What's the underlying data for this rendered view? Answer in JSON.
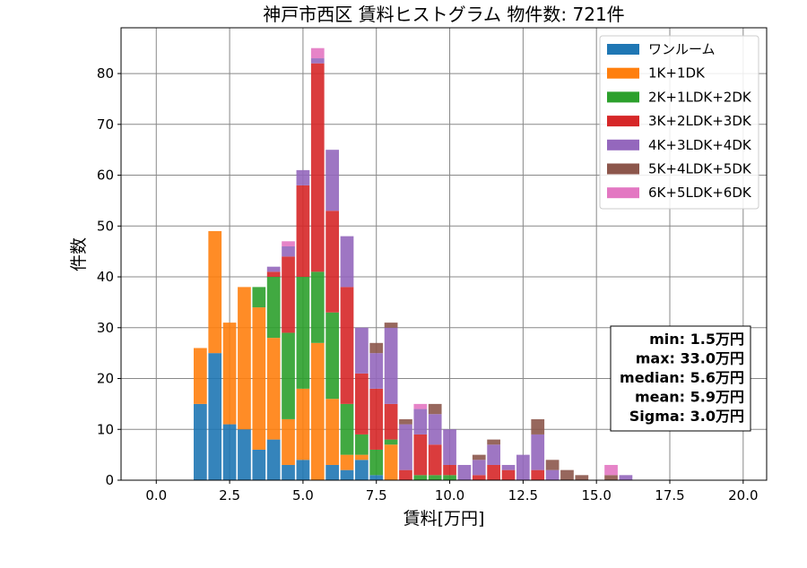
{
  "chart_data": {
    "type": "bar",
    "stacked": true,
    "title": "神戸市西区 賃料ヒストグラム 物件数: 721件",
    "xlabel": "賃料[万円]",
    "ylabel": "件数",
    "xlim": [
      -1.2,
      20.8
    ],
    "ylim": [
      0,
      89
    ],
    "xticks": [
      0.0,
      2.5,
      5.0,
      7.5,
      10.0,
      12.5,
      15.0,
      17.5,
      20.0
    ],
    "xtick_labels": [
      "0.0",
      "2.5",
      "5.0",
      "7.5",
      "10.0",
      "12.5",
      "15.0",
      "17.5",
      "20.0"
    ],
    "yticks": [
      0,
      10,
      20,
      30,
      40,
      50,
      60,
      70,
      80
    ],
    "ytick_labels": [
      "0",
      "10",
      "20",
      "30",
      "40",
      "50",
      "60",
      "70",
      "80"
    ],
    "grid": true,
    "legend_position": "top-right",
    "bin_width": 0.5,
    "bins": [
      1.5,
      2.0,
      2.5,
      3.0,
      3.5,
      4.0,
      4.5,
      5.0,
      5.5,
      6.0,
      6.5,
      7.0,
      7.5,
      8.0,
      8.5,
      9.0,
      9.5,
      10.0,
      10.5,
      11.0,
      11.5,
      12.0,
      12.5,
      13.0,
      13.5,
      14.0,
      14.5,
      15.0,
      15.5,
      16.0
    ],
    "series": [
      {
        "name": "ワンルーム",
        "color": "#1f77b4",
        "values": [
          15,
          25,
          11,
          10,
          6,
          8,
          3,
          4,
          0,
          3,
          2,
          4,
          1,
          0,
          0,
          0,
          0,
          0,
          0,
          0,
          0,
          0,
          0,
          0,
          0,
          0,
          0,
          0,
          0,
          0
        ]
      },
      {
        "name": "1K+1DK",
        "color": "#ff7f0e",
        "values": [
          11,
          24,
          20,
          28,
          28,
          20,
          9,
          14,
          27,
          13,
          3,
          1,
          0,
          7,
          0,
          0,
          0,
          0,
          0,
          0,
          0,
          0,
          0,
          0,
          0,
          0,
          0,
          0,
          0,
          0
        ]
      },
      {
        "name": "2K+1LDK+2DK",
        "color": "#2ca02c",
        "values": [
          0,
          0,
          0,
          0,
          4,
          12,
          17,
          22,
          14,
          17,
          10,
          4,
          5,
          1,
          0,
          1,
          1,
          1,
          0,
          0,
          0,
          0,
          0,
          0,
          0,
          0,
          0,
          0,
          0,
          0
        ]
      },
      {
        "name": "3K+2LDK+3DK",
        "color": "#d62728",
        "values": [
          0,
          0,
          0,
          0,
          0,
          1,
          15,
          18,
          41,
          20,
          23,
          12,
          12,
          7,
          2,
          8,
          6,
          2,
          0,
          1,
          3,
          2,
          0,
          2,
          0,
          0,
          0,
          0,
          0,
          0
        ]
      },
      {
        "name": "4K+3LDK+4DK",
        "color": "#9467bd",
        "values": [
          0,
          0,
          0,
          0,
          0,
          1,
          2,
          3,
          1,
          12,
          10,
          9,
          7,
          15,
          9,
          5,
          6,
          7,
          3,
          3,
          4,
          1,
          5,
          7,
          2,
          0,
          0,
          0,
          0,
          1
        ]
      },
      {
        "name": "5K+4LDK+5DK",
        "color": "#8c564b",
        "values": [
          0,
          0,
          0,
          0,
          0,
          0,
          0,
          0,
          0,
          0,
          0,
          0,
          2,
          1,
          1,
          0,
          2,
          0,
          0,
          1,
          1,
          0,
          0,
          3,
          2,
          2,
          1,
          0,
          1,
          0
        ]
      },
      {
        "name": "6K+5LDK+6DK",
        "color": "#e377c2",
        "values": [
          0,
          0,
          0,
          0,
          0,
          0,
          1,
          0,
          2,
          0,
          0,
          0,
          0,
          0,
          0,
          1,
          0,
          0,
          0,
          0,
          0,
          0,
          0,
          0,
          0,
          0,
          0,
          0,
          2,
          0
        ]
      }
    ],
    "stats": [
      "min: 1.5万円",
      "max: 33.0万円",
      "median: 5.6万円",
      "mean: 5.9万円",
      "Sigma: 3.0万円"
    ]
  }
}
